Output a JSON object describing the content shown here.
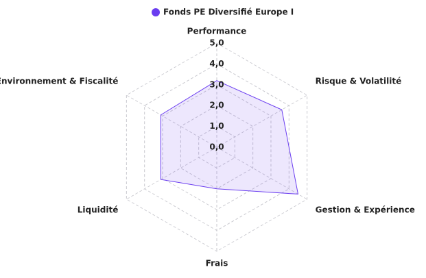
{
  "chart_data": {
    "type": "radar",
    "categories": [
      "Performance",
      "Risque & Volatilité",
      "Gestion & Expérience",
      "Frais",
      "Liquidité",
      "Environnement & Fiscalité"
    ],
    "series": [
      {
        "name": "Fonds PE Diversifié Europe I",
        "color": "#6a3df0",
        "values": [
          3.2,
          3.6,
          4.5,
          2.0,
          3.1,
          3.1
        ]
      }
    ],
    "ylim": [
      0,
      5
    ],
    "yticks": [
      {
        "value": 0,
        "label": "0,0"
      },
      {
        "value": 1,
        "label": "1,0"
      },
      {
        "value": 2,
        "label": "2,0"
      },
      {
        "value": 3,
        "label": "3,0"
      },
      {
        "value": 4,
        "label": "4,0"
      },
      {
        "value": 5,
        "label": "5,0"
      }
    ],
    "legend": "top"
  }
}
